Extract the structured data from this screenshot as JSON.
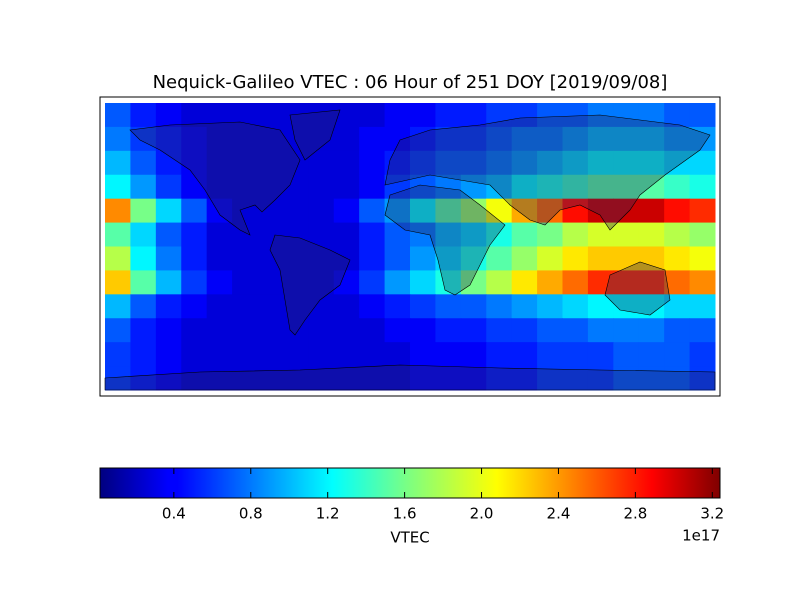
{
  "chart_data": {
    "type": "heatmap",
    "title": "Nequick-Galileo VTEC : 06 Hour of 251 DOY [2019/09/08]",
    "colorbar_label": "VTEC",
    "colorbar_offset": "1e17",
    "colormap": "jet",
    "clim": [
      0.016,
      3.24
    ],
    "cticks": [
      0.4,
      0.8,
      1.2,
      1.6,
      {
        "value": 2,
        "label": "2.0"
      },
      2.4,
      2.8,
      3.2
    ],
    "z": [
      [
        0.7,
        0.5,
        0.4,
        0.3,
        0.3,
        0.3,
        0.3,
        0.3,
        0.3,
        0.3,
        0.3,
        0.4,
        0.4,
        0.5,
        0.5,
        0.6,
        0.6,
        0.7,
        0.7,
        0.8,
        0.8,
        0.8,
        0.7,
        0.7
      ],
      [
        0.8,
        0.6,
        0.5,
        0.4,
        0.3,
        0.3,
        0.3,
        0.3,
        0.3,
        0.3,
        0.4,
        0.4,
        0.5,
        0.6,
        0.6,
        0.7,
        0.8,
        0.8,
        0.9,
        1.0,
        1.0,
        1.0,
        0.9,
        0.9
      ],
      [
        1.0,
        0.7,
        0.5,
        0.4,
        0.3,
        0.3,
        0.3,
        0.3,
        0.3,
        0.3,
        0.4,
        0.5,
        0.6,
        0.7,
        0.7,
        0.8,
        0.9,
        1.0,
        1.1,
        1.2,
        1.2,
        1.2,
        1.1,
        1.1
      ],
      [
        1.2,
        0.9,
        0.6,
        0.4,
        0.3,
        0.3,
        0.3,
        0.3,
        0.3,
        0.3,
        0.4,
        0.6,
        0.7,
        0.8,
        0.9,
        1.0,
        1.2,
        1.3,
        1.4,
        1.5,
        1.5,
        1.5,
        1.4,
        1.3
      ],
      [
        2.4,
        1.6,
        1.1,
        0.7,
        0.4,
        0.3,
        0.3,
        0.3,
        0.3,
        0.4,
        0.7,
        0.9,
        1.2,
        1.5,
        1.7,
        2.0,
        2.3,
        2.5,
        2.8,
        3.0,
        3.0,
        3.0,
        2.8,
        2.7
      ],
      [
        1.5,
        1.1,
        0.7,
        0.5,
        0.3,
        0.3,
        0.3,
        0.3,
        0.3,
        0.3,
        0.5,
        0.7,
        0.8,
        1.0,
        1.1,
        1.3,
        1.5,
        1.6,
        1.8,
        1.9,
        1.9,
        1.9,
        1.8,
        1.7
      ],
      [
        1.8,
        1.2,
        0.8,
        0.5,
        0.3,
        0.3,
        0.3,
        0.3,
        0.3,
        0.3,
        0.5,
        0.7,
        0.9,
        1.1,
        1.3,
        1.5,
        1.7,
        1.9,
        2.1,
        2.2,
        2.2,
        2.2,
        2.1,
        2.0
      ],
      [
        2.2,
        1.5,
        1.0,
        0.6,
        0.4,
        0.3,
        0.3,
        0.3,
        0.3,
        0.4,
        0.6,
        0.9,
        1.1,
        1.3,
        1.6,
        1.8,
        2.1,
        2.3,
        2.5,
        2.7,
        2.7,
        2.7,
        2.5,
        2.4
      ],
      [
        1.0,
        0.7,
        0.5,
        0.4,
        0.3,
        0.3,
        0.3,
        0.3,
        0.3,
        0.3,
        0.4,
        0.5,
        0.6,
        0.7,
        0.7,
        0.8,
        0.9,
        1.0,
        1.1,
        1.2,
        1.2,
        1.2,
        1.1,
        1.1
      ],
      [
        0.7,
        0.5,
        0.4,
        0.3,
        0.3,
        0.3,
        0.3,
        0.3,
        0.3,
        0.3,
        0.3,
        0.4,
        0.4,
        0.5,
        0.5,
        0.6,
        0.6,
        0.7,
        0.7,
        0.8,
        0.8,
        0.8,
        0.7,
        0.7
      ],
      [
        0.6,
        0.5,
        0.4,
        0.3,
        0.3,
        0.3,
        0.3,
        0.3,
        0.3,
        0.3,
        0.3,
        0.3,
        0.4,
        0.4,
        0.4,
        0.5,
        0.5,
        0.6,
        0.6,
        0.6,
        0.7,
        0.7,
        0.7,
        0.6
      ],
      [
        0.6,
        0.5,
        0.4,
        0.3,
        0.3,
        0.3,
        0.3,
        0.3,
        0.3,
        0.3,
        0.3,
        0.3,
        0.4,
        0.4,
        0.4,
        0.5,
        0.5,
        0.6,
        0.6,
        0.6,
        0.7,
        0.7,
        0.7,
        0.6
      ]
    ]
  }
}
